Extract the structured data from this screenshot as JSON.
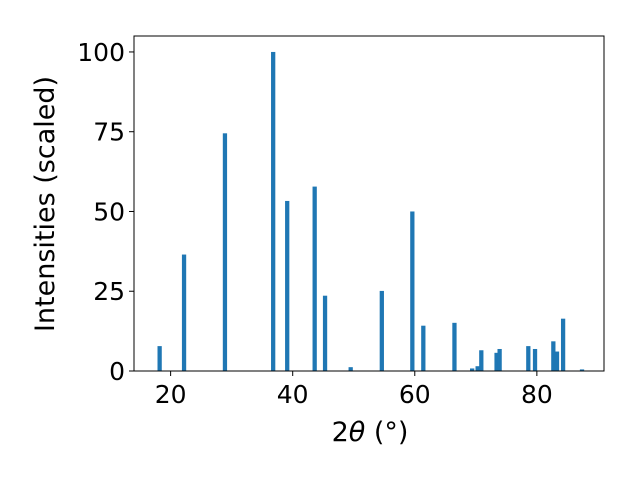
{
  "chart_data": {
    "type": "bar",
    "xlabel_main": "2",
    "xlabel_theta": "θ",
    "xlabel_unit": " (°)",
    "ylabel": "Intensities (scaled)",
    "xlim": [
      14,
      91
    ],
    "ylim": [
      0,
      105
    ],
    "x_ticks": [
      20,
      40,
      60,
      80
    ],
    "y_ticks": [
      0,
      25,
      50,
      75,
      100
    ],
    "bar_width": 0.7,
    "grid": false,
    "legend": "none",
    "bar_color": "#1f77b4",
    "points": [
      {
        "x": 18.2,
        "y": 7.8
      },
      {
        "x": 22.2,
        "y": 36.5
      },
      {
        "x": 28.9,
        "y": 74.5
      },
      {
        "x": 36.8,
        "y": 100
      },
      {
        "x": 39.1,
        "y": 53.3
      },
      {
        "x": 43.6,
        "y": 57.8
      },
      {
        "x": 45.3,
        "y": 23.6
      },
      {
        "x": 49.5,
        "y": 1.2
      },
      {
        "x": 54.6,
        "y": 25.1
      },
      {
        "x": 59.6,
        "y": 50
      },
      {
        "x": 61.4,
        "y": 14.2
      },
      {
        "x": 66.5,
        "y": 15.1
      },
      {
        "x": 69.4,
        "y": 0.8
      },
      {
        "x": 70.3,
        "y": 1.5
      },
      {
        "x": 70.9,
        "y": 6.5
      },
      {
        "x": 73.4,
        "y": 5.7
      },
      {
        "x": 73.9,
        "y": 6.9
      },
      {
        "x": 78.6,
        "y": 7.8
      },
      {
        "x": 79.7,
        "y": 6.9
      },
      {
        "x": 82.7,
        "y": 9.3
      },
      {
        "x": 83.3,
        "y": 6.1
      },
      {
        "x": 84.3,
        "y": 16.4
      },
      {
        "x": 87.4,
        "y": 0.5
      }
    ]
  }
}
